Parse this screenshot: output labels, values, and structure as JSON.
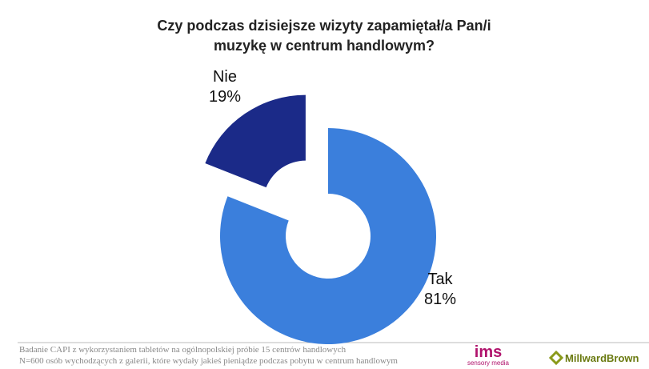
{
  "chart_data": {
    "type": "donut",
    "title": "Czy podczas dzisiejsze wizyty zapamiętał/a Pan/i muzykę w centrum handlowym?",
    "categories": [
      "Tak",
      "Nie"
    ],
    "values": [
      81,
      19
    ],
    "value_labels": [
      "81%",
      "19%"
    ],
    "colors": [
      "#3b7fdc",
      "#1b2a88"
    ],
    "exploded": [
      false,
      true
    ]
  },
  "footer": {
    "lines": [
      "Badanie CAPI z wykorzystaniem tabletów na ogólnopolskiej próbie 15 centrów handlowych",
      "N=600 osób wychodzących z galerii, które wydały jakieś pieniądze podczas pobytu w centrum handlowym"
    ],
    "logos": [
      "ims",
      "sensory media",
      "MillwardBrown"
    ]
  }
}
